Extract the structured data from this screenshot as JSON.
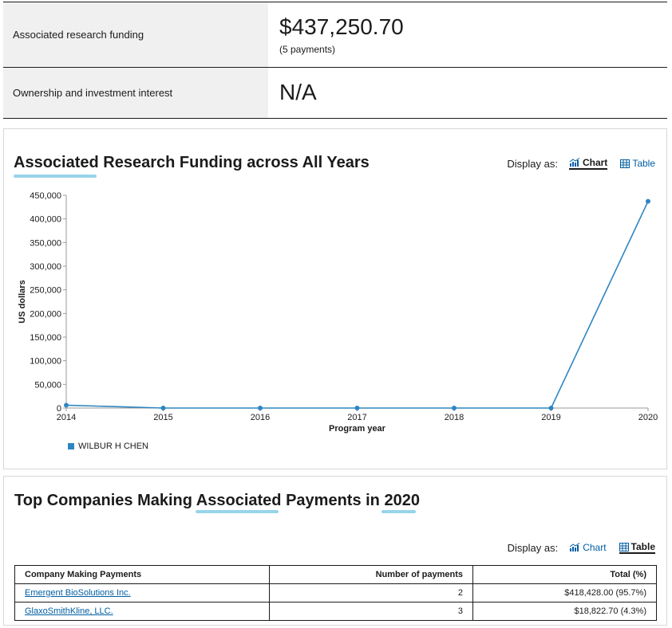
{
  "summary": {
    "funding_label": "Associated research funding",
    "funding_value": "$437,250.70",
    "funding_payments": "(5 payments)",
    "ownership_label": "Ownership and investment interest",
    "ownership_value": "N/A"
  },
  "funding_chart_panel": {
    "title": "Associated Research Funding across All Years",
    "display_as_label": "Display as:",
    "chart_toggle": "Chart",
    "table_toggle": "Table",
    "active_view": "Chart"
  },
  "chart_data": {
    "type": "line",
    "title": "Associated Research Funding across All Years",
    "xlabel": "Program year",
    "ylabel": "US dollars",
    "x": [
      2014,
      2015,
      2016,
      2017,
      2018,
      2019,
      2020
    ],
    "x_tick_labels": [
      "2014",
      "2015",
      "2016",
      "2017",
      "2018",
      "2019",
      "2020"
    ],
    "y_ticks": [
      0,
      50000,
      100000,
      150000,
      200000,
      250000,
      300000,
      350000,
      400000,
      450000
    ],
    "y_tick_labels": [
      "0",
      "50,000",
      "100,000",
      "150,000",
      "200,000",
      "250,000",
      "300,000",
      "350,000",
      "400,000",
      "450,000"
    ],
    "ylim": [
      0,
      450000
    ],
    "grid": false,
    "legend_position": "bottom-left",
    "series": [
      {
        "name": "WILBUR H CHEN",
        "color": "#2e86c1",
        "values": [
          6000,
          0,
          0,
          0,
          0,
          0,
          437250.7
        ]
      }
    ]
  },
  "companies_panel": {
    "title_pre": "Top Companies Making ",
    "title_mid": "Associated",
    "title_post": " Payments in ",
    "title_year": "2020",
    "display_as_label": "Display as:",
    "chart_toggle": "Chart",
    "table_toggle": "Table",
    "active_view": "Table",
    "columns": [
      "Company Making Payments",
      "Number of payments",
      "Total (%)"
    ],
    "rows": [
      {
        "company": "Emergent BioSolutions Inc.",
        "payments": "2",
        "total": "$418,428.00 (95.7%)"
      },
      {
        "company": "GlaxoSmithKline, LLC.",
        "payments": "3",
        "total": "$18,822.70 (4.3%)"
      }
    ]
  },
  "colors": {
    "accent_underline": "#97d4ea",
    "link": "#005ea2",
    "series": "#2e86c1",
    "label_bg": "#f0f0f0"
  }
}
